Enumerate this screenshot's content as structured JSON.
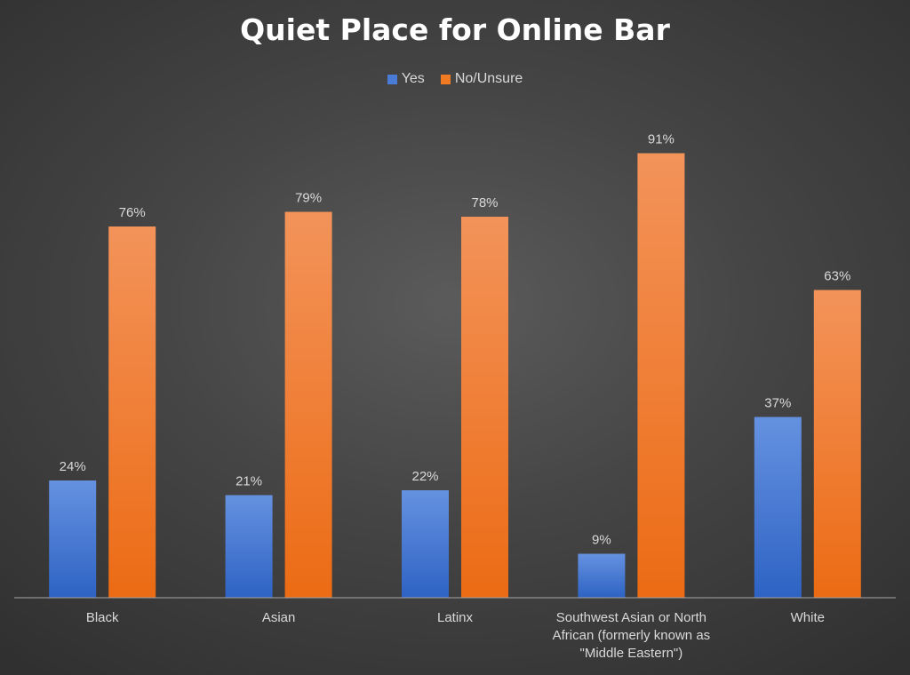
{
  "chart_data": {
    "type": "bar",
    "title": "Quiet Place for Online Bar",
    "xlabel": "",
    "ylabel": "",
    "ylim": [
      0,
      100
    ],
    "grid": false,
    "legend_position": "top",
    "categories": [
      "Black",
      "Asian",
      "Latinx",
      "Southwest Asian or North African (formerly known as \"Middle Eastern\")",
      "White"
    ],
    "series": [
      {
        "name": "Yes",
        "color": "#4472c4",
        "values": [
          24,
          21,
          22,
          9,
          37
        ],
        "labels": [
          "24%",
          "21%",
          "22%",
          "9%",
          "37%"
        ]
      },
      {
        "name": "No/Unsure",
        "color": "#ed7d31",
        "values": [
          76,
          79,
          78,
          91,
          63
        ],
        "labels": [
          "76%",
          "79%",
          "78%",
          "91%",
          "63%"
        ]
      }
    ]
  }
}
